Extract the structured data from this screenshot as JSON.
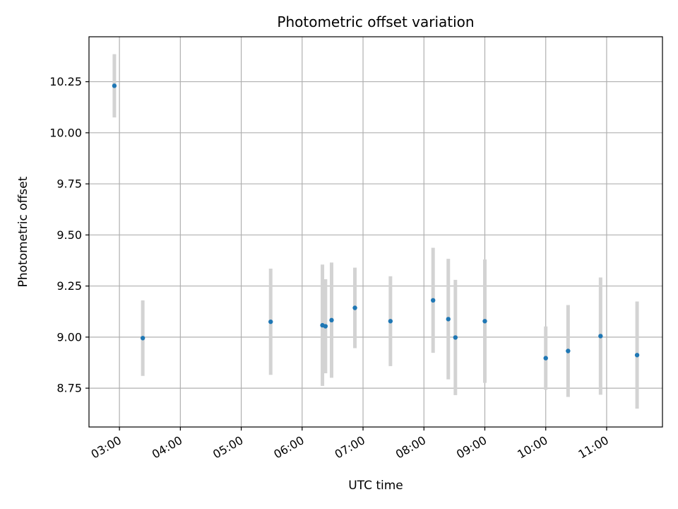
{
  "chart_data": {
    "type": "scatter",
    "title": "Photometric offset variation",
    "xlabel": "UTC time",
    "ylabel": "Photometric offset",
    "x_axis_kind": "time",
    "xlim": [
      "02:30",
      "11:55"
    ],
    "ylim": [
      8.56,
      10.47
    ],
    "xticks": [
      "03:00",
      "04:00",
      "05:00",
      "06:00",
      "07:00",
      "08:00",
      "09:00",
      "10:00",
      "11:00"
    ],
    "yticks": [
      8.75,
      9.0,
      9.25,
      9.5,
      9.75,
      10.0,
      10.25
    ],
    "ytick_labels": [
      "8.75",
      "9.00",
      "9.25",
      "9.50",
      "9.75",
      "10.00",
      "10.25"
    ],
    "grid": true,
    "point_color": "#1f77b4",
    "errorbar_color": "#d3d3d3",
    "series": [
      {
        "points": [
          {
            "x": "02:55",
            "y": 10.23,
            "err": 0.155
          },
          {
            "x": "03:23",
            "y": 8.995,
            "err": 0.185
          },
          {
            "x": "05:29",
            "y": 9.075,
            "err": 0.26
          },
          {
            "x": "06:20",
            "y": 9.058,
            "err": 0.297
          },
          {
            "x": "06:23",
            "y": 9.053,
            "err": 0.23
          },
          {
            "x": "06:29",
            "y": 9.083,
            "err": 0.282
          },
          {
            "x": "06:52",
            "y": 9.143,
            "err": 0.197
          },
          {
            "x": "07:27",
            "y": 9.078,
            "err": 0.22
          },
          {
            "x": "08:09",
            "y": 9.18,
            "err": 0.257
          },
          {
            "x": "08:24",
            "y": 9.088,
            "err": 0.295
          },
          {
            "x": "08:31",
            "y": 8.998,
            "err": 0.282
          },
          {
            "x": "09:00",
            "y": 9.078,
            "err": 0.302
          },
          {
            "x": "10:00",
            "y": 8.897,
            "err": 0.155
          },
          {
            "x": "10:22",
            "y": 8.932,
            "err": 0.225
          },
          {
            "x": "10:54",
            "y": 9.005,
            "err": 0.287
          },
          {
            "x": "11:30",
            "y": 8.912,
            "err": 0.262
          }
        ]
      }
    ]
  }
}
